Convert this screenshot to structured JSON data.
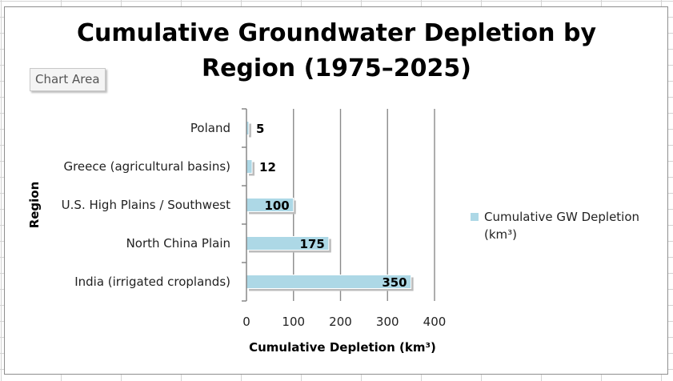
{
  "tooltip": "Chart Area",
  "colors": {
    "bar": "#ADD8E6",
    "axis": "#808080",
    "grid": "#8a8a8a"
  },
  "chart_data": {
    "type": "bar",
    "orientation": "horizontal",
    "title": "Cumulative Groundwater Depletion by Region (1975–2025)",
    "title_lines": [
      "Cumulative Groundwater Depletion by",
      "Region (1975–2025)"
    ],
    "xlabel": "Cumulative Depletion (km³)",
    "ylabel": "Region",
    "xlim": [
      0,
      400
    ],
    "xticks": [
      "0",
      "100",
      "200",
      "300",
      "400"
    ],
    "grid": "vertical",
    "legend_position": "right",
    "categories": [
      "India (irrigated croplands)",
      "North China Plain",
      "U.S. High Plains / Southwest",
      "Greece (agricultural basins)",
      "Poland"
    ],
    "series": [
      {
        "name": "Cumulative GW Depletion (km³)",
        "legend_lines": [
          "Cumulative GW Depletion",
          "(km³)"
        ],
        "values": [
          350,
          175,
          100,
          12,
          5
        ]
      }
    ]
  }
}
